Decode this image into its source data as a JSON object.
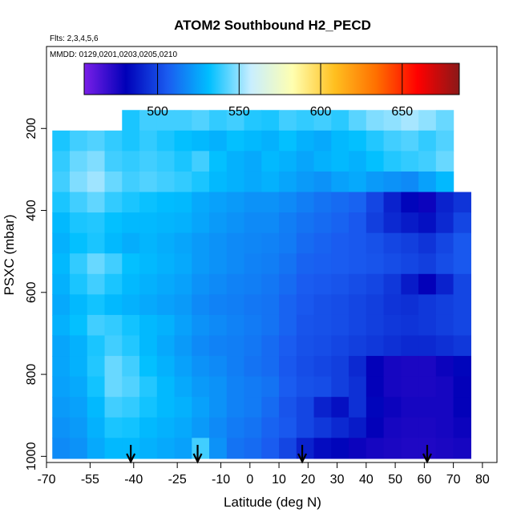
{
  "chart_data": {
    "type": "heatmap",
    "title": "ATOM2 Southbound H2_PECD",
    "flights_label": "Flts: 2,3,4,5,6",
    "mmdd_label": "MMDD: 0129,0201,0203,0205,0210",
    "xlabel": "Latitude (deg N)",
    "ylabel": "PSXC (mbar)",
    "xlim": [
      -70,
      85
    ],
    "ylim": [
      1015,
      0
    ],
    "x_ticks": [
      -70,
      -55,
      -40,
      -25,
      -10,
      0,
      10,
      20,
      30,
      40,
      50,
      60,
      70,
      80
    ],
    "y_ticks": [
      200,
      400,
      600,
      800,
      1000
    ],
    "colorbar": {
      "range": [
        455,
        685
      ],
      "ticks": [
        500,
        550,
        600,
        650
      ],
      "colors": [
        "#7a1fe8",
        "#0000b8",
        "#1a5cf0",
        "#00bfff",
        "#c8eeff",
        "#ffffb0",
        "#ffc020",
        "#ff7000",
        "#ff0000",
        "#8a1818"
      ]
    },
    "arrows_lat": [
      -41,
      -18,
      18,
      61
    ],
    "lat_bins": [
      -68,
      -62,
      -56,
      -50,
      -44,
      -38,
      -32,
      -26,
      -20,
      -14,
      -8,
      -2,
      4,
      10,
      16,
      22,
      28,
      34,
      40,
      46,
      52,
      58,
      64,
      70
    ],
    "pressure_levels": [
      180,
      230,
      280,
      330,
      380,
      430,
      480,
      530,
      580,
      630,
      680,
      730,
      780,
      830,
      880,
      930,
      980
    ],
    "values": [
      [
        null,
        null,
        null,
        null,
        535,
        540,
        540,
        540,
        542,
        538,
        540,
        536,
        535,
        540,
        538,
        540,
        537,
        543,
        548,
        550,
        553,
        550,
        545,
        null
      ],
      [
        535,
        540,
        542,
        538,
        535,
        538,
        535,
        532,
        530,
        528,
        532,
        530,
        528,
        532,
        528,
        526,
        530,
        532,
        536,
        540,
        542,
        538,
        542,
        null
      ],
      [
        538,
        545,
        548,
        540,
        538,
        540,
        538,
        535,
        540,
        532,
        528,
        526,
        530,
        528,
        525,
        528,
        530,
        528,
        532,
        536,
        538,
        540,
        545,
        null
      ],
      [
        540,
        548,
        552,
        545,
        540,
        542,
        540,
        538,
        535,
        530,
        528,
        526,
        528,
        525,
        522,
        520,
        524,
        526,
        522,
        520,
        518,
        524,
        530,
        null
      ],
      [
        535,
        540,
        544,
        538,
        535,
        533,
        531,
        530,
        526,
        524,
        522,
        520,
        520,
        518,
        515,
        512,
        510,
        508,
        500,
        490,
        482,
        478,
        490,
        495
      ],
      [
        530,
        535,
        536,
        532,
        530,
        530,
        529,
        528,
        525,
        522,
        520,
        518,
        518,
        515,
        512,
        510,
        508,
        505,
        498,
        492,
        488,
        485,
        492,
        500
      ],
      [
        528,
        532,
        535,
        530,
        527,
        529,
        527,
        525,
        522,
        520,
        518,
        517,
        516,
        514,
        510,
        508,
        506,
        505,
        503,
        500,
        498,
        495,
        500,
        505
      ],
      [
        530,
        538,
        545,
        540,
        532,
        530,
        528,
        526,
        522,
        520,
        518,
        516,
        515,
        512,
        508,
        507,
        506,
        505,
        504,
        502,
        500,
        498,
        502,
        505
      ],
      [
        528,
        535,
        540,
        535,
        530,
        528,
        526,
        524,
        520,
        518,
        516,
        515,
        513,
        510,
        506,
        505,
        504,
        502,
        500,
        496,
        488,
        480,
        490,
        500
      ],
      [
        526,
        530,
        534,
        530,
        528,
        526,
        524,
        522,
        518,
        516,
        515,
        513,
        512,
        508,
        505,
        503,
        502,
        500,
        498,
        495,
        494,
        496,
        498,
        500
      ],
      [
        528,
        532,
        540,
        538,
        534,
        530,
        528,
        524,
        520,
        518,
        516,
        514,
        512,
        508,
        504,
        503,
        502,
        500,
        498,
        496,
        495,
        496,
        498,
        500
      ],
      [
        525,
        528,
        535,
        540,
        536,
        530,
        526,
        522,
        518,
        516,
        515,
        513,
        510,
        506,
        503,
        502,
        500,
        498,
        496,
        494,
        492,
        492,
        494,
        496
      ],
      [
        525,
        528,
        536,
        545,
        540,
        532,
        528,
        524,
        520,
        518,
        515,
        512,
        510,
        505,
        502,
        500,
        498,
        492,
        480,
        476,
        475,
        475,
        478,
        482
      ],
      [
        524,
        526,
        534,
        545,
        542,
        536,
        530,
        526,
        522,
        520,
        516,
        514,
        512,
        506,
        503,
        502,
        498,
        494,
        480,
        476,
        475,
        475,
        476,
        480
      ],
      [
        522,
        524,
        530,
        540,
        538,
        534,
        530,
        528,
        524,
        520,
        516,
        514,
        510,
        504,
        500,
        490,
        485,
        494,
        482,
        478,
        476,
        476,
        476,
        480
      ],
      [
        520,
        522,
        528,
        535,
        534,
        530,
        528,
        526,
        522,
        518,
        514,
        512,
        508,
        505,
        500,
        496,
        492,
        488,
        480,
        476,
        475,
        475,
        476,
        478
      ],
      [
        518,
        520,
        526,
        530,
        530,
        528,
        526,
        524,
        540,
        520,
        512,
        510,
        506,
        500,
        490,
        484,
        482,
        478,
        476,
        475,
        474,
        474,
        475,
        476
      ]
    ]
  }
}
